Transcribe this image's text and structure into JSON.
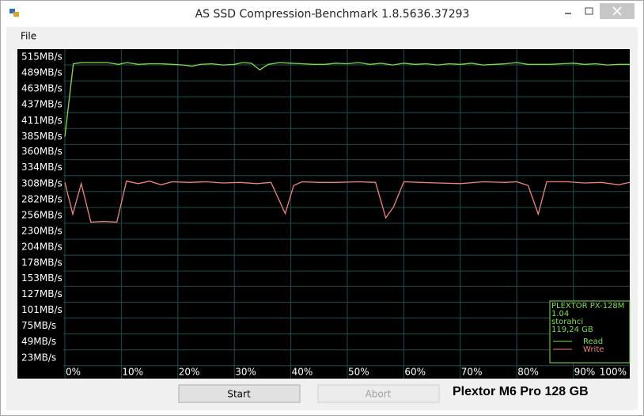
{
  "window": {
    "title": "AS SSD Compression-Benchmark 1.8.5636.37293",
    "menu": [
      "File"
    ]
  },
  "buttons": [
    "Start",
    "Abort"
  ],
  "footer": "Plextor M6 Pro 128 GB",
  "chart_data": {
    "type": "line",
    "info": [
      "PLEXTOR PX-128M",
      "1.04",
      "storahci",
      "119,24 GB"
    ],
    "legend": "lower right",
    "grid": true,
    "xlim": [
      0,
      100
    ],
    "xticks": [
      {
        "value": 0,
        "label": "0%"
      },
      {
        "value": 10,
        "label": "10%"
      },
      {
        "value": 20,
        "label": "20%"
      },
      {
        "value": 30,
        "label": "30%"
      },
      {
        "value": 40,
        "label": "40%"
      },
      {
        "value": 50,
        "label": "50%"
      },
      {
        "value": 60,
        "label": "60%"
      },
      {
        "value": 70,
        "label": "70%"
      },
      {
        "value": 80,
        "label": "80%"
      },
      {
        "value": 90,
        "label": "90%"
      },
      {
        "value": 100,
        "label": "100%"
      }
    ],
    "ylim": [
      -11,
      528
    ],
    "yticks": [
      {
        "value": 23,
        "label": "23MB/s"
      },
      {
        "value": 49,
        "label": "49MB/s"
      },
      {
        "value": 75,
        "label": "75MB/s"
      },
      {
        "value": 101,
        "label": "101MB/s"
      },
      {
        "value": 127,
        "label": "127MB/s"
      },
      {
        "value": 153,
        "label": "153MB/s"
      },
      {
        "value": 178,
        "label": "178MB/s"
      },
      {
        "value": 204,
        "label": "204MB/s"
      },
      {
        "value": 230,
        "label": "230MB/s"
      },
      {
        "value": 256,
        "label": "256MB/s"
      },
      {
        "value": 282,
        "label": "282MB/s"
      },
      {
        "value": 308,
        "label": "308MB/s"
      },
      {
        "value": 334,
        "label": "334MB/s"
      },
      {
        "value": 360,
        "label": "360MB/s"
      },
      {
        "value": 385,
        "label": "385MB/s"
      },
      {
        "value": 411,
        "label": "411MB/s"
      },
      {
        "value": 437,
        "label": "437MB/s"
      },
      {
        "value": 463,
        "label": "463MB/s"
      },
      {
        "value": 489,
        "label": "489MB/s"
      },
      {
        "value": 515,
        "label": "515MB/s"
      }
    ],
    "series": [
      {
        "name": "Read",
        "color": "#7ee04a",
        "x": [
          0,
          1.5,
          3,
          5,
          7.5,
          9.5,
          11,
          13,
          15,
          17,
          19,
          21,
          22.5,
          24,
          26,
          28,
          30,
          31.5,
          33,
          34.5,
          36,
          38,
          40,
          42,
          44,
          46,
          48,
          50,
          52,
          54,
          56,
          58,
          60,
          62,
          64,
          66,
          68,
          70,
          72,
          74,
          76,
          78,
          80,
          82,
          84,
          86,
          88,
          90,
          92,
          94,
          96,
          98,
          100
        ],
        "values": [
          385,
          504,
          506,
          506,
          506,
          503,
          506,
          503,
          504,
          504,
          503,
          502,
          500,
          503,
          504,
          502,
          503,
          506,
          505,
          494,
          503,
          506,
          505,
          504,
          503,
          503,
          505,
          504,
          506,
          503,
          505,
          502,
          505,
          503,
          504,
          502,
          504,
          503,
          505,
          502,
          503,
          504,
          506,
          503,
          503,
          503,
          504,
          505,
          503,
          504,
          502,
          503,
          503
        ]
      },
      {
        "name": "Write",
        "color": "#f0847a",
        "x": [
          0,
          1.4,
          2.9,
          4.6,
          7,
          9.2,
          10.9,
          13,
          15,
          17,
          19,
          22,
          25,
          28,
          31,
          34,
          36.5,
          39,
          40.5,
          42,
          45,
          48,
          52,
          55,
          56.8,
          58.2,
          60,
          63,
          66,
          70,
          74,
          78,
          80,
          82,
          83.8,
          85.3,
          89,
          92,
          95,
          98,
          100
        ],
        "values": [
          310,
          258,
          308,
          245,
          246,
          245,
          312,
          308,
          312,
          306,
          311,
          310,
          311,
          309,
          310,
          308,
          310,
          259,
          305,
          311,
          310,
          310,
          311,
          310,
          252,
          270,
          311,
          310,
          309,
          308,
          311,
          310,
          311,
          305,
          258,
          311,
          311,
          309,
          310,
          306,
          310
        ]
      }
    ]
  }
}
